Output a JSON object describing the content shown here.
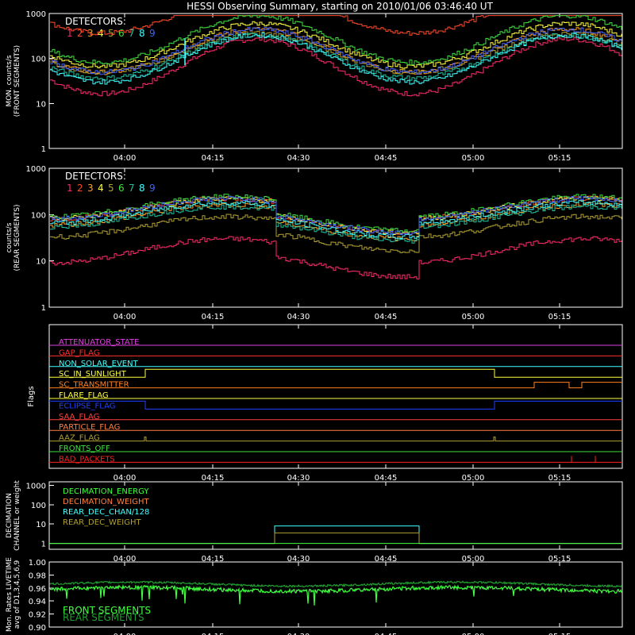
{
  "title": "HESSI Observing Summary, starting on 2010/01/06 03:46:40 UT",
  "time_ticks": [
    "04:00",
    "04:15",
    "04:30",
    "04:45",
    "05:00",
    "05:15"
  ],
  "detectors": {
    "label": "DETECTORS:",
    "items": [
      {
        "n": "1",
        "color": "#ff2a6a"
      },
      {
        "n": "2",
        "color": "#ff4a2a"
      },
      {
        "n": "3",
        "color": "#ffa020"
      },
      {
        "n": "4",
        "color": "#ffff40"
      },
      {
        "n": "5",
        "color": "#b0a030"
      },
      {
        "n": "6",
        "color": "#40e040"
      },
      {
        "n": "7",
        "color": "#20c0a0"
      },
      {
        "n": "8",
        "color": "#40ffff"
      },
      {
        "n": "9",
        "color": "#4060ff"
      }
    ]
  },
  "chart_data": [
    {
      "id": "front",
      "type": "line",
      "ylabel": "MON. counts/s",
      "ylabel2": "(FRONT SEGMENTS)",
      "scale": "log",
      "ylim": [
        1,
        1000
      ],
      "yticks": [
        "1",
        "10",
        "100",
        "1000"
      ],
      "xlim_minutes": [
        0,
        100
      ],
      "series": [
        {
          "n": "1",
          "color": "#ff2a6a",
          "base": 4.2,
          "amp": 1.4
        },
        {
          "n": "2",
          "color": "#ff4a2a",
          "base": 6.9,
          "amp": 1.0
        },
        {
          "n": "3",
          "color": "#ffa020",
          "base": 5.0,
          "amp": 1.1
        },
        {
          "n": "4",
          "color": "#ffff40",
          "base": 5.3,
          "amp": 1.1
        },
        {
          "n": "5",
          "color": "#b0a030",
          "base": 4.9,
          "amp": 1.0
        },
        {
          "n": "6",
          "color": "#40e040",
          "base": 5.6,
          "amp": 1.2
        },
        {
          "n": "7",
          "color": "#20c0a0",
          "base": 4.7,
          "amp": 1.1
        },
        {
          "n": "8",
          "color": "#40ffff",
          "base": 4.6,
          "amp": 1.2
        },
        {
          "n": "9",
          "color": "#4060ff",
          "base": 5.0,
          "amp": 1.1
        }
      ]
    },
    {
      "id": "rear",
      "type": "line",
      "ylabel": "counts/s",
      "ylabel2": "(REAR SEGMENTS)",
      "scale": "log",
      "ylim": [
        1,
        1000
      ],
      "yticks": [
        "1",
        "10",
        "100",
        "1000"
      ],
      "xlim_minutes": [
        0,
        100
      ],
      "series": [
        {
          "n": "1",
          "color": "#ff2a6a",
          "base": 2.8,
          "amp": 0.6
        },
        {
          "n": "2",
          "color": "#ff4a2a",
          "base": 4.9,
          "amp": 0.5
        },
        {
          "n": "3",
          "color": "#ffa020",
          "base": 4.6,
          "amp": 0.5
        },
        {
          "n": "4",
          "color": "#ffff40",
          "base": 4.9,
          "amp": 0.5
        },
        {
          "n": "5",
          "color": "#b0a030",
          "base": 4.0,
          "amp": 0.5
        },
        {
          "n": "6",
          "color": "#40e040",
          "base": 5.0,
          "amp": 0.5
        },
        {
          "n": "7",
          "color": "#20c0a0",
          "base": 4.5,
          "amp": 0.5
        },
        {
          "n": "8",
          "color": "#40ffff",
          "base": 4.7,
          "amp": 0.5
        },
        {
          "n": "9",
          "color": "#4060ff",
          "base": 4.9,
          "amp": 0.5
        }
      ]
    },
    {
      "id": "flags",
      "type": "step",
      "ylabel": "Flags",
      "flags": [
        {
          "name": "ATTENUATOR_STATE",
          "color": "#e040e0"
        },
        {
          "name": "GAP_FLAG",
          "color": "#ff3030"
        },
        {
          "name": "NON_SOLAR_EVENT",
          "color": "#40ffff"
        },
        {
          "name": "SC_IN_SUNLIGHT",
          "color": "#ffff40"
        },
        {
          "name": "SC_TRANSMITTER",
          "color": "#ff8020"
        },
        {
          "name": "FLARE_FLAG",
          "color": "#ffff40"
        },
        {
          "name": "ECLIPSE_FLAG",
          "color": "#2040ff"
        },
        {
          "name": "SAA_FLAG",
          "color": "#ff4040"
        },
        {
          "name": "PARTICLE_FLAG",
          "color": "#ff8040"
        },
        {
          "name": "AAZ_FLAG",
          "color": "#b0a030"
        },
        {
          "name": "FRONTS_OFF",
          "color": "#40e040"
        },
        {
          "name": "BAD_PACKETS",
          "color": "#ff2020"
        }
      ]
    },
    {
      "id": "decimation",
      "type": "step",
      "ylabel": "DECIMATION",
      "ylabel2": "CHANNEL or weight",
      "scale": "log",
      "ylim": [
        0.5,
        1500
      ],
      "yticks": [
        "1",
        "10",
        "100",
        "1000"
      ],
      "legend": [
        {
          "name": "DECIMATION_ENERGY",
          "color": "#40ff40"
        },
        {
          "name": "DECIMATION_WEIGHT",
          "color": "#ff8040"
        },
        {
          "name": "REAR_DEC_CHAN/128",
          "color": "#40ffff"
        },
        {
          "name": "REAR_DEC_WEIGHT",
          "color": "#b0a030"
        }
      ]
    },
    {
      "id": "livetime",
      "type": "line",
      "ylabel": "Mon. Rates LIVETIME",
      "ylabel2": "avg of D1,3,4,5,6,9",
      "ylim": [
        0.9,
        1.0
      ],
      "yticks": [
        "0.90",
        "0.92",
        "0.94",
        "0.96",
        "0.98",
        "1.00"
      ],
      "legend": [
        {
          "name": "FRONT SEGMENTS",
          "color": "#40ff40"
        },
        {
          "name": "REAR SEGMENTS",
          "color": "#20a030"
        }
      ],
      "series": [
        {
          "name": "FRONT SEGMENTS",
          "color": "#40ff40",
          "level": 0.958
        },
        {
          "name": "REAR SEGMENTS",
          "color": "#20a030",
          "level": 0.966
        }
      ]
    }
  ]
}
